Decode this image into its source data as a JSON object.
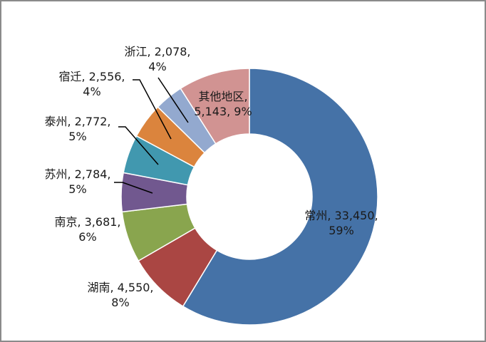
{
  "chart_data": {
    "type": "pie",
    "variant": "doughnut",
    "title": "",
    "start_angle_deg": 0,
    "direction": "clockwise",
    "legend": "none",
    "categories": [
      "常州",
      "湖南",
      "南京",
      "苏州",
      "泰州",
      "宿迁",
      "浙江",
      "其他地区"
    ],
    "values": [
      33450,
      4550,
      3681,
      2784,
      2772,
      2556,
      2078,
      5143
    ],
    "percent_labels": [
      "59%",
      "8%",
      "6%",
      "5%",
      "5%",
      "4%",
      "4%",
      "9%"
    ],
    "colors": [
      "#4572A7",
      "#AA4643",
      "#89A54E",
      "#71588F",
      "#4198AF",
      "#DB843D",
      "#93A9CF",
      "#D19392"
    ],
    "labels": [
      {
        "line1": "常州, 33,450,",
        "line2": "59%"
      },
      {
        "line1": "湖南, 4,550,",
        "line2": "8%"
      },
      {
        "line1": "南京, 3,681,",
        "line2": "6%"
      },
      {
        "line1": "苏州, 2,784,",
        "line2": "5%"
      },
      {
        "line1": "泰州, 2,772,",
        "line2": "5%"
      },
      {
        "line1": "宿迁, 2,556,",
        "line2": "4%"
      },
      {
        "line1": "浙江, 2,078,",
        "line2": "4%"
      },
      {
        "line1": "其他地区,",
        "line2": "5,143, 9%"
      }
    ]
  }
}
